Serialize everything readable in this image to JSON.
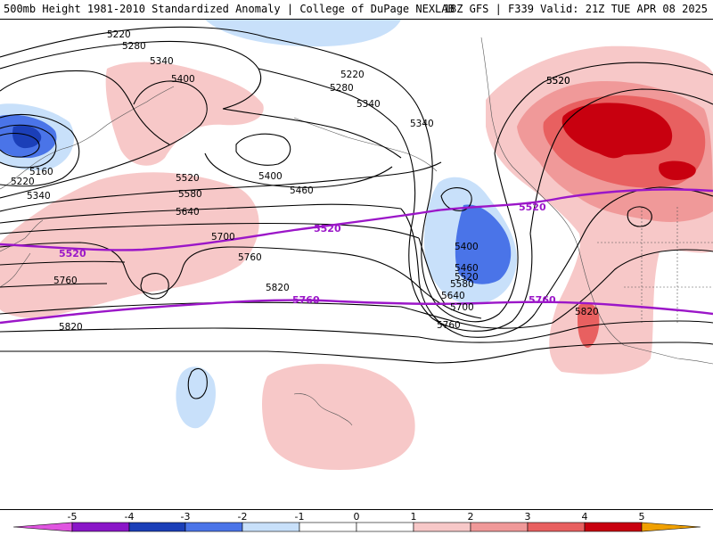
{
  "header": {
    "title": "500mb Height 1981-2010 Standardized Anomaly | College of DuPage NEXLAB",
    "run_info": "18Z GFS | F339 Valid: 21Z TUE APR 08 2025"
  },
  "colors": {
    "neg5": "#e055e0",
    "neg4": "#8a16c8",
    "neg3": "#1b3fb8",
    "neg2": "#4a74e8",
    "neg1": "#c8e0fa",
    "pos1": "#f7c8c8",
    "pos2": "#f09999",
    "pos3": "#e86060",
    "pos4": "#c8000f",
    "pos5": "#f0a000",
    "contour": "#000000",
    "highlight_contour": "#9b16c8"
  },
  "colorbar": {
    "ticks": [
      "-5",
      "-4",
      "-3",
      "-2",
      "-1",
      "0",
      "1",
      "2",
      "3",
      "4",
      "5"
    ],
    "tick_values": [
      -5,
      -4,
      -3,
      -2,
      -1,
      0,
      1,
      2,
      3,
      4,
      5
    ]
  },
  "contour_labels": [
    "5220",
    "5280",
    "5340",
    "5400",
    "5160",
    "5220",
    "5340",
    "5220",
    "5280",
    "5340",
    "5340",
    "5400",
    "5460",
    "5520",
    "5580",
    "5640",
    "5700",
    "5760",
    "5820",
    "5760",
    "5820",
    "5520",
    "5400",
    "5460",
    "5520",
    "5580",
    "5640",
    "5700",
    "5760",
    "5820",
    "5520"
  ],
  "highlight_labels": [
    "5520",
    "5520",
    "5520",
    "5760",
    "5760"
  ]
}
